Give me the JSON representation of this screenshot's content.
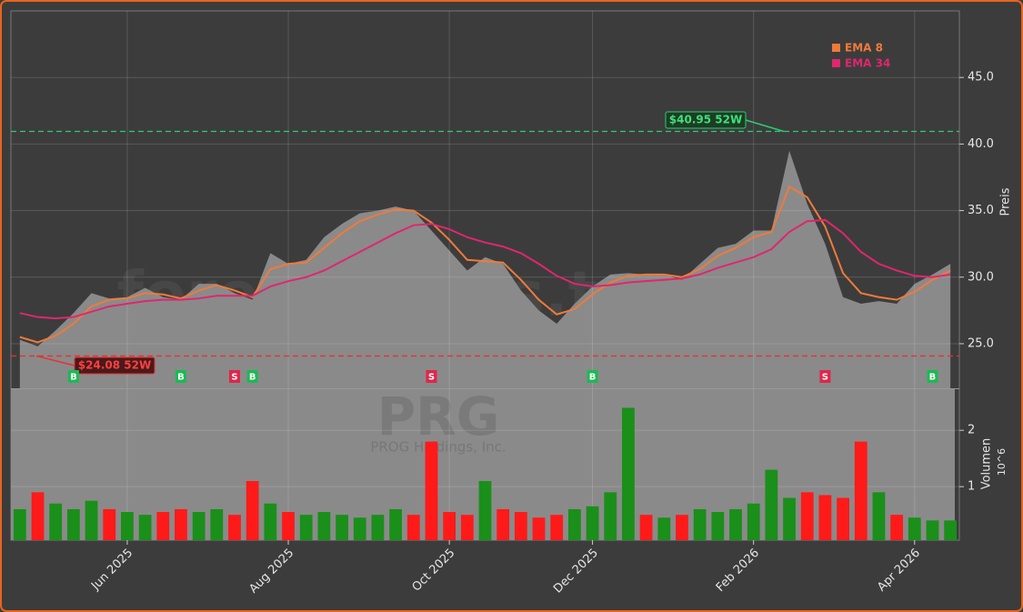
{
  "chart_data": {
    "type": "line",
    "watermark": "forexsignals.trade",
    "symbol": "PRG",
    "company": "PROG Holdings, Inc.",
    "ylabel": "Preis",
    "categories": [
      null,
      null,
      null,
      null,
      null,
      null,
      "Jun 2025",
      null,
      null,
      null,
      null,
      null,
      null,
      null,
      null,
      "Aug 2025",
      null,
      null,
      null,
      null,
      null,
      null,
      null,
      null,
      "Oct 2025",
      null,
      null,
      null,
      null,
      null,
      null,
      null,
      "Dec 2025",
      null,
      null,
      null,
      null,
      null,
      null,
      null,
      null,
      "Feb 2026",
      null,
      null,
      null,
      null,
      null,
      null,
      null,
      null,
      "Apr 2026",
      null,
      null
    ],
    "price": {
      "color": "#8a8a8a",
      "values": [
        25.3,
        24.8,
        26.0,
        27.3,
        28.8,
        28.4,
        28.5,
        29.2,
        28.5,
        28.3,
        29.5,
        29.5,
        28.8,
        28.3,
        31.8,
        31.0,
        31.3,
        33.0,
        34.0,
        34.8,
        35.0,
        35.3,
        35.0,
        33.5,
        32.0,
        30.5,
        31.5,
        31.0,
        29.0,
        27.5,
        26.5,
        28.0,
        29.3,
        30.2,
        30.3,
        30.2,
        30.2,
        29.8,
        31.0,
        32.2,
        32.5,
        33.5,
        33.5,
        39.5,
        35.5,
        32.5,
        28.5,
        28.0,
        28.2,
        28.0,
        29.5,
        30.2,
        31.0
      ]
    },
    "series": [
      {
        "name": "EMA 8",
        "color": "#f07a3a",
        "values": [
          25.5,
          25.1,
          25.6,
          26.5,
          27.8,
          28.3,
          28.4,
          28.8,
          28.7,
          28.4,
          29.0,
          29.4,
          29.0,
          28.5,
          30.6,
          31.0,
          31.1,
          32.2,
          33.3,
          34.2,
          34.7,
          35.1,
          35.0,
          34.1,
          32.8,
          31.3,
          31.2,
          31.1,
          29.8,
          28.3,
          27.2,
          27.6,
          28.7,
          29.6,
          30.1,
          30.2,
          30.2,
          30.0,
          30.6,
          31.6,
          32.2,
          33.0,
          33.4,
          36.8,
          36.0,
          33.8,
          30.3,
          28.8,
          28.5,
          28.3,
          28.9,
          29.8,
          30.5
        ]
      },
      {
        "name": "EMA 34",
        "color": "#e0266e",
        "values": [
          27.3,
          27.0,
          26.9,
          27.0,
          27.4,
          27.8,
          28.0,
          28.2,
          28.3,
          28.3,
          28.4,
          28.6,
          28.6,
          28.6,
          29.3,
          29.7,
          30.0,
          30.5,
          31.2,
          31.9,
          32.6,
          33.3,
          33.9,
          34.0,
          33.6,
          33.0,
          32.6,
          32.3,
          31.8,
          31.0,
          30.1,
          29.5,
          29.3,
          29.4,
          29.6,
          29.7,
          29.8,
          29.9,
          30.2,
          30.7,
          31.1,
          31.5,
          32.1,
          33.4,
          34.2,
          34.3,
          33.3,
          31.9,
          31.0,
          30.5,
          30.1,
          30.0,
          30.2
        ]
      }
    ],
    "ylim": [
      21.65,
      50
    ],
    "yticks": [
      {
        "value": 25,
        "label": "25.0"
      },
      {
        "value": 30,
        "label": "30.0"
      },
      {
        "value": 35,
        "label": "35.0"
      },
      {
        "value": 40,
        "label": "40.0"
      },
      {
        "value": 45,
        "label": "45.0"
      }
    ],
    "grid": true,
    "high": {
      "value": 40.95,
      "label": "$40.95 52W",
      "color": "#2ecc71"
    },
    "low": {
      "value": 24.08,
      "label": "$24.08 52W",
      "color": "#e83030"
    },
    "signals": [
      null,
      null,
      null,
      "B",
      null,
      null,
      null,
      null,
      null,
      "B",
      null,
      null,
      "S",
      "B",
      null,
      null,
      null,
      null,
      null,
      null,
      null,
      null,
      null,
      "S",
      null,
      null,
      null,
      null,
      null,
      null,
      null,
      null,
      "B",
      null,
      null,
      null,
      null,
      null,
      null,
      null,
      null,
      null,
      null,
      null,
      null,
      "S",
      null,
      null,
      null,
      null,
      null,
      "B",
      null
    ],
    "buy_color": "#1db954",
    "sell_color": "#e0264a",
    "volume": {
      "ylabel": "Volumen",
      "offset": "10^6",
      "up_color": "#1a8f1a",
      "down_color": "#ff1a1a",
      "ylim": [
        0.05,
        2.73
      ],
      "yticks": [
        1,
        2
      ],
      "values": [
        0.6,
        0.9,
        0.7,
        0.6,
        0.75,
        0.6,
        0.55,
        0.5,
        0.55,
        0.6,
        0.55,
        0.6,
        0.5,
        1.1,
        0.7,
        0.55,
        0.5,
        0.55,
        0.5,
        0.45,
        0.5,
        0.6,
        0.5,
        1.8,
        0.55,
        0.5,
        1.1,
        0.6,
        0.55,
        0.45,
        0.5,
        0.6,
        0.65,
        0.9,
        2.4,
        0.5,
        0.45,
        0.5,
        0.6,
        0.55,
        0.6,
        0.7,
        1.3,
        0.8,
        0.9,
        0.85,
        0.8,
        1.8,
        0.9,
        0.5,
        0.45,
        0.4,
        0.4
      ]
    }
  }
}
